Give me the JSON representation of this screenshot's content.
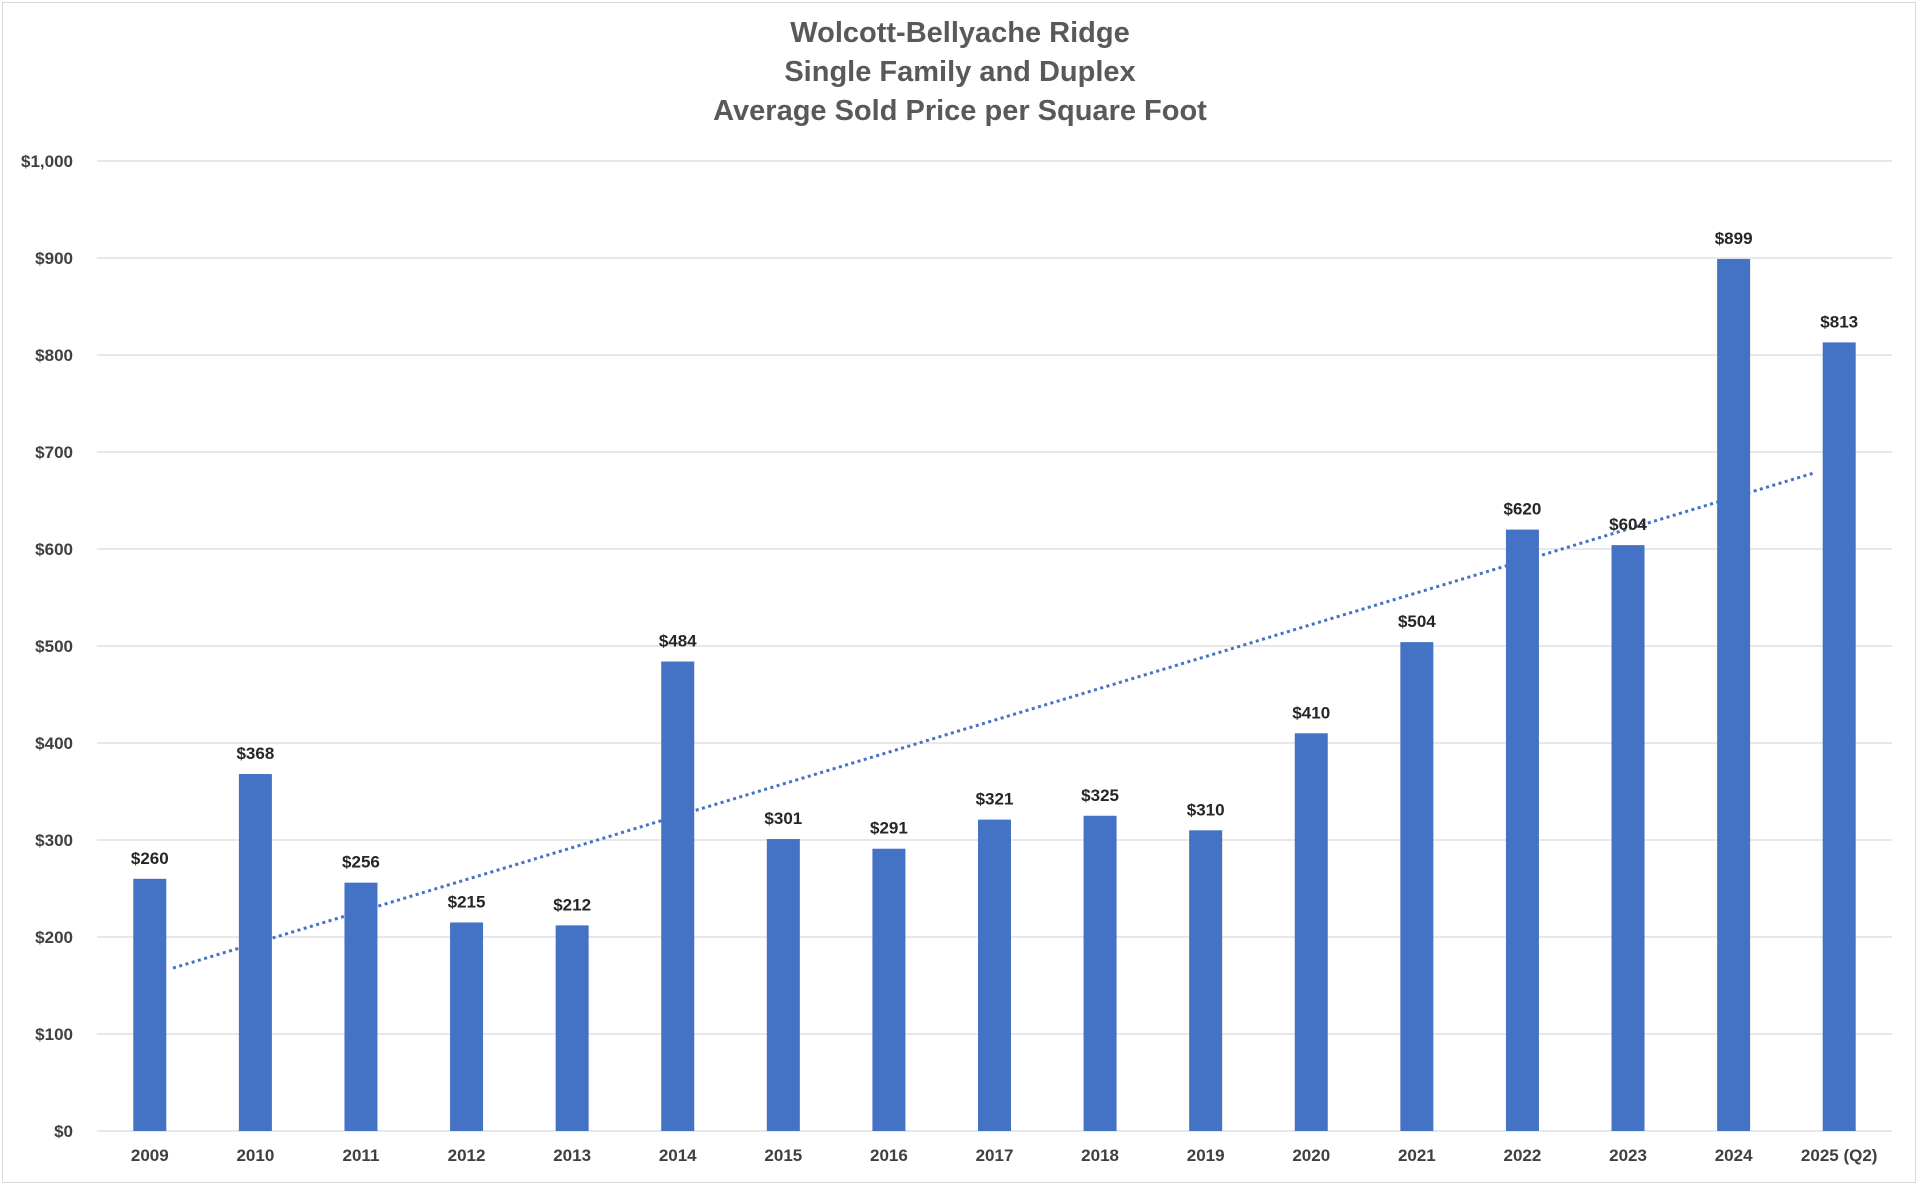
{
  "chart_data": {
    "type": "bar",
    "title_lines": [
      "Wolcott-Bellyache Ridge",
      "Single Family and Duplex",
      "Average Sold Price per Square Foot"
    ],
    "xlabel": "",
    "ylabel": "",
    "categories": [
      "2009",
      "2010",
      "2011",
      "2012",
      "2013",
      "2014",
      "2015",
      "2016",
      "2017",
      "2018",
      "2019",
      "2020",
      "2021",
      "2022",
      "2023",
      "2024",
      "2025 (Q2)"
    ],
    "values": [
      260,
      368,
      256,
      215,
      212,
      484,
      301,
      291,
      321,
      325,
      310,
      410,
      504,
      620,
      604,
      899,
      813
    ],
    "data_labels": [
      "$260",
      "$368",
      "$256",
      "$215",
      "$212",
      "$484",
      "$301",
      "$291",
      "$321",
      "$325",
      "$310",
      "$410",
      "$504",
      "$620",
      "$604",
      "$899",
      "$813"
    ],
    "ylim": [
      0,
      1000
    ],
    "y_ticks": [
      0,
      100,
      200,
      300,
      400,
      500,
      600,
      700,
      800,
      900,
      1000
    ],
    "y_tick_labels": [
      "$0",
      "$100",
      "$200",
      "$300",
      "$400",
      "$500",
      "$600",
      "$700",
      "$800",
      "$900",
      "$1,000"
    ],
    "grid": "horizontal",
    "legend": "none",
    "bar_color": "#4472c4",
    "gridline_color": "#d9d9d9",
    "trendline": {
      "type": "linear",
      "style": "dotted",
      "color": "#4472c4",
      "start_value": 168,
      "end_value": 679
    }
  }
}
